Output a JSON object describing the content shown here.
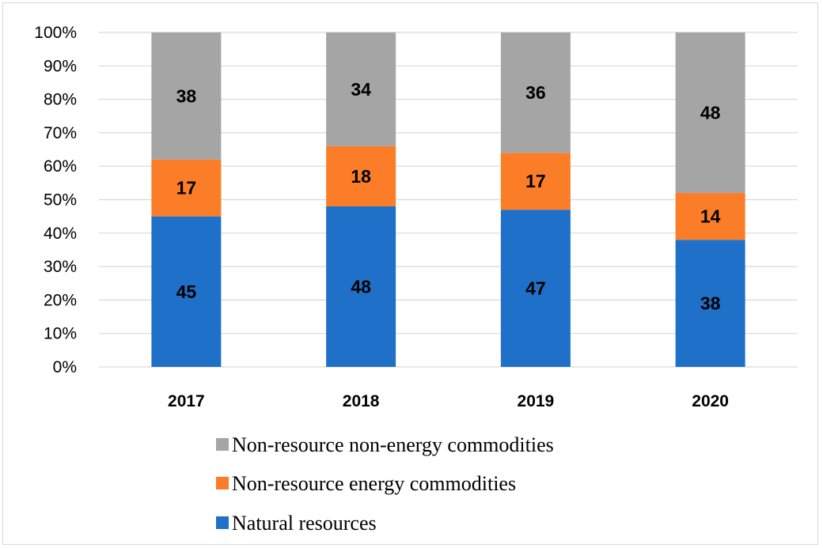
{
  "chart_data": {
    "type": "bar",
    "stacked": true,
    "percent_axis": true,
    "categories": [
      "2017",
      "2018",
      "2019",
      "2020"
    ],
    "series": [
      {
        "name": "Natural resources",
        "values": [
          45,
          48,
          47,
          38
        ],
        "color": "#1f70c9"
      },
      {
        "name": "Non-resource energy commodities",
        "values": [
          17,
          18,
          17,
          14
        ],
        "color": "#fb7d28"
      },
      {
        "name": "Non-resource non-energy commodities",
        "values": [
          38,
          34,
          36,
          48
        ],
        "color": "#a5a5a5"
      }
    ],
    "ylim": [
      0,
      100
    ],
    "yticks": [
      "0%",
      "10%",
      "20%",
      "30%",
      "40%",
      "50%",
      "60%",
      "70%",
      "80%",
      "90%",
      "100%"
    ],
    "grid": true,
    "legend_position": "bottom",
    "legend_order": [
      "Non-resource non-energy commodities",
      "Non-resource energy commodities",
      "Natural resources"
    ]
  }
}
